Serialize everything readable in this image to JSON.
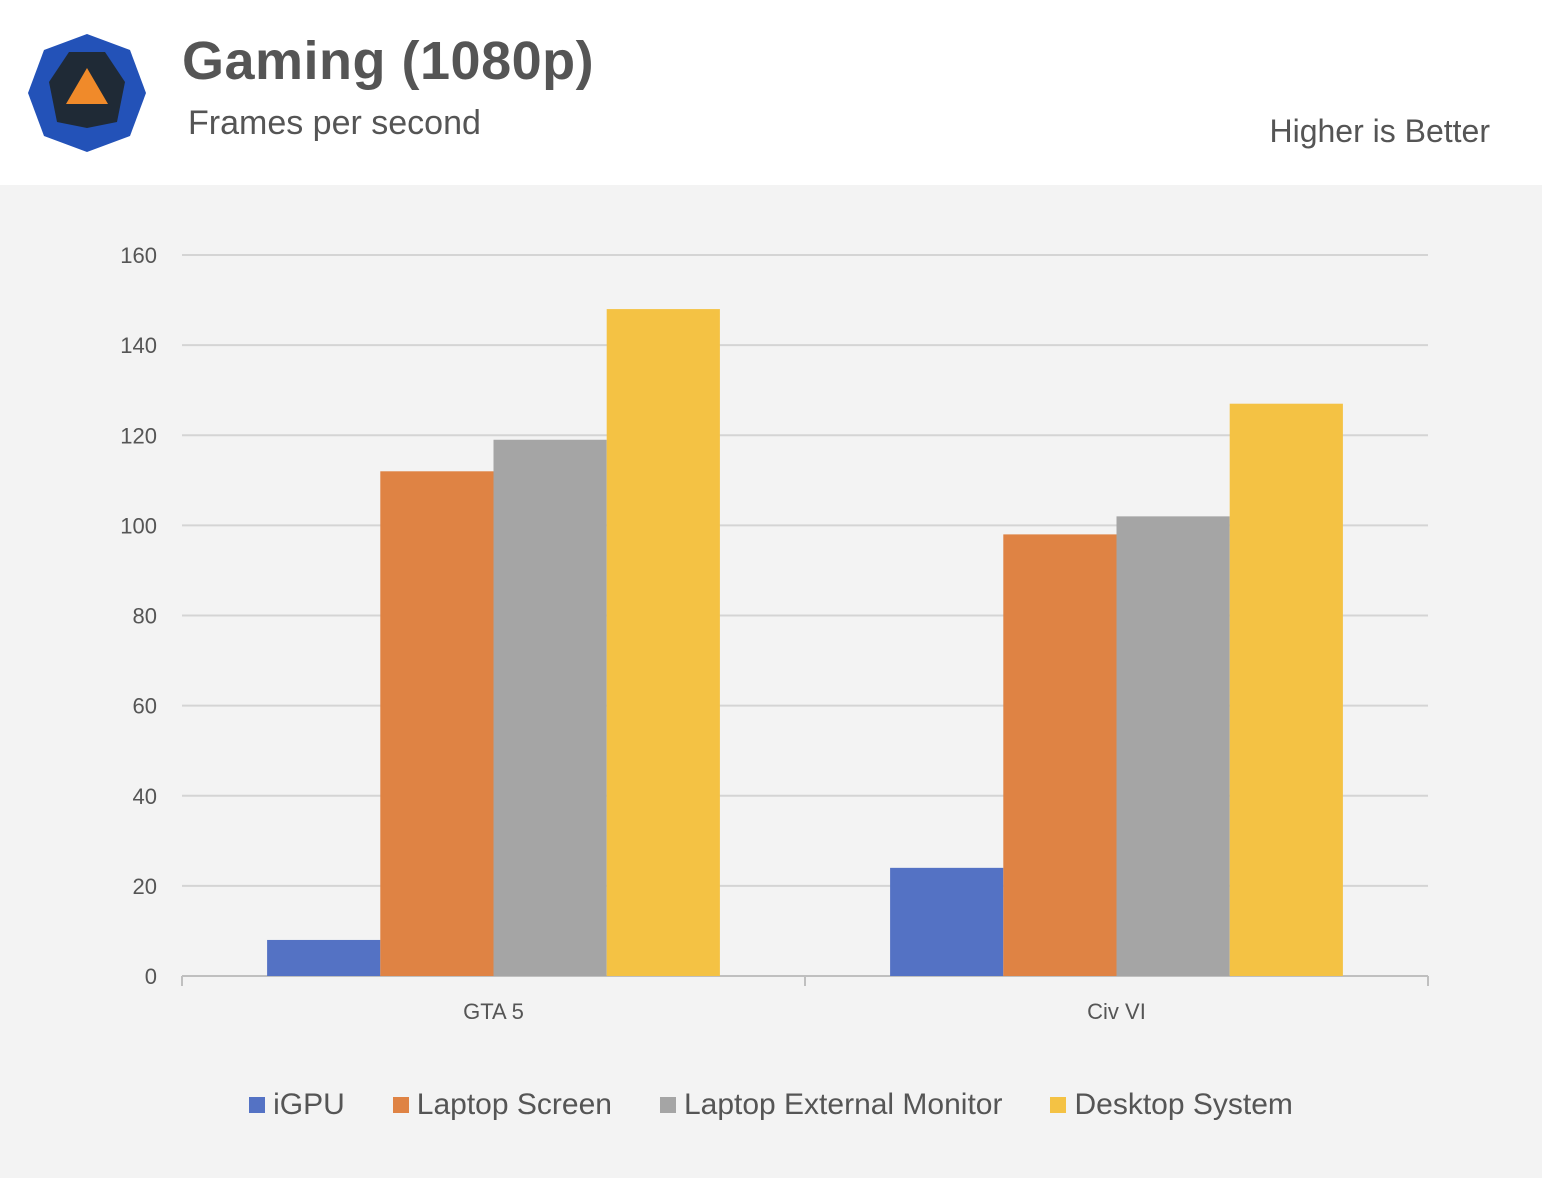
{
  "header": {
    "title": "Gaming (1080p)",
    "subtitle": "Frames per second",
    "note": "Higher is Better",
    "logo_icon": "techspot-logo-icon",
    "logo_colors": {
      "outer": "#2352b8",
      "inner": "#1f2a36",
      "triangle": "#f08a2a"
    }
  },
  "chart_data": {
    "type": "bar",
    "title": "Gaming (1080p)",
    "subtitle": "Frames per second",
    "categories": [
      "GTA 5",
      "Civ VI"
    ],
    "series": [
      {
        "name": "iGPU",
        "color": "#5472c4",
        "values": [
          8,
          24
        ]
      },
      {
        "name": "Laptop Screen",
        "color": "#df8344",
        "values": [
          112,
          98
        ]
      },
      {
        "name": "Laptop External Monitor",
        "color": "#a5a5a5",
        "values": [
          119,
          102
        ]
      },
      {
        "name": "Desktop System",
        "color": "#f4c244",
        "values": [
          148,
          127
        ]
      }
    ],
    "ylim": [
      0,
      160
    ],
    "yticks": [
      "0",
      "20",
      "40",
      "60",
      "80",
      "100",
      "120",
      "140",
      "160"
    ],
    "grid": true,
    "legend_position": "bottom",
    "xlabel": "",
    "ylabel": ""
  }
}
